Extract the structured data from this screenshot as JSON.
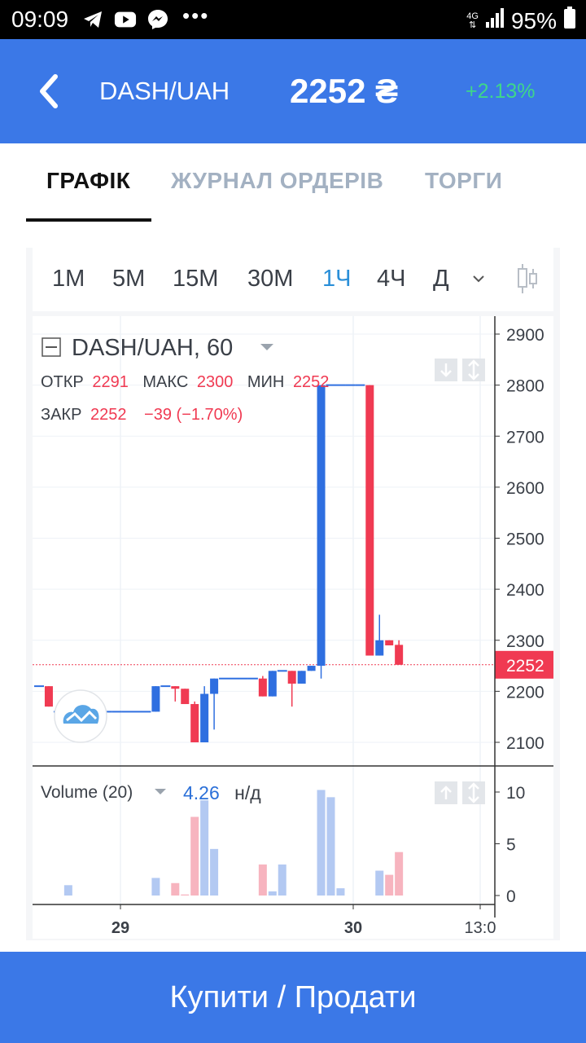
{
  "status_bar": {
    "time": "09:09",
    "network": "4G",
    "battery": "95%",
    "more": "•••",
    "icons": [
      "telegram-icon",
      "youtube-icon",
      "messenger-icon",
      "signal-icon",
      "battery-icon"
    ]
  },
  "header": {
    "pair": "DASH/UAH",
    "price": "2252 ₴",
    "change": "+2.13%",
    "colors": {
      "background": "#3b78e7",
      "change": "#3ed68b"
    }
  },
  "tabs": [
    {
      "label": "ГРАФІК",
      "active": true
    },
    {
      "label": "ЖУРНАЛ ОРДЕРІВ",
      "active": false
    },
    {
      "label": "ТОРГИ",
      "active": false
    }
  ],
  "timeframes": {
    "items": [
      "1M",
      "5M",
      "15M",
      "30M",
      "1Ч",
      "4Ч",
      "Д"
    ],
    "active": "1Ч"
  },
  "chart_data": {
    "type": "candlestick",
    "symbol_label": "DASH/UAH, 60",
    "ohlc": {
      "open_label": "ОТКР",
      "open": "2291",
      "high_label": "МАКС",
      "high": "2300",
      "low_label": "МИН",
      "low": "2252",
      "close_label": "ЗАКР",
      "close": "2252",
      "change": "−39 (−1.70%)"
    },
    "y_axis": {
      "range": [
        2050,
        2920
      ],
      "ticks": [
        "2900",
        "2800",
        "2700",
        "2600",
        "2500",
        "2400",
        "2300",
        "2200",
        "2100"
      ]
    },
    "last_price": 2252,
    "last_price_label": "2252",
    "x_ticks": [
      {
        "label": "29",
        "bold": true
      },
      {
        "label": "30",
        "bold": true
      },
      {
        "label": "13:0",
        "bold": false
      }
    ],
    "candles": [
      {
        "o": 2210,
        "h": 2210,
        "l": 2210,
        "c": 2210,
        "dir": "flat"
      },
      {
        "o": 2210,
        "h": 2210,
        "l": 2170,
        "c": 2170,
        "dir": "down"
      },
      {
        "o": 2160,
        "h": 2160,
        "l": 2160,
        "c": 2160,
        "dir": "flat"
      },
      {
        "o": 2160,
        "h": 2160,
        "l": 2160,
        "c": 2160,
        "dir": "flat"
      },
      {
        "o": 2160,
        "h": 2160,
        "l": 2160,
        "c": 2160,
        "dir": "flat"
      },
      {
        "o": 2160,
        "h": 2160,
        "l": 2160,
        "c": 2160,
        "dir": "flat"
      },
      {
        "o": 2160,
        "h": 2160,
        "l": 2160,
        "c": 2160,
        "dir": "flat"
      },
      {
        "o": 2160,
        "h": 2160,
        "l": 2160,
        "c": 2160,
        "dir": "flat"
      },
      {
        "o": 2160,
        "h": 2160,
        "l": 2160,
        "c": 2160,
        "dir": "flat"
      },
      {
        "o": 2160,
        "h": 2160,
        "l": 2160,
        "c": 2160,
        "dir": "flat"
      },
      {
        "o": 2160,
        "h": 2160,
        "l": 2160,
        "c": 2160,
        "dir": "flat"
      },
      {
        "o": 2160,
        "h": 2160,
        "l": 2160,
        "c": 2160,
        "dir": "flat"
      },
      {
        "o": 2160,
        "h": 2210,
        "l": 2160,
        "c": 2210,
        "dir": "up"
      },
      {
        "o": 2210,
        "h": 2210,
        "l": 2210,
        "c": 2210,
        "dir": "flat"
      },
      {
        "o": 2210,
        "h": 2210,
        "l": 2180,
        "c": 2205,
        "dir": "down"
      },
      {
        "o": 2205,
        "h": 2205,
        "l": 2175,
        "c": 2175,
        "dir": "down"
      },
      {
        "o": 2175,
        "h": 2180,
        "l": 2100,
        "c": 2100,
        "dir": "down"
      },
      {
        "o": 2100,
        "h": 2210,
        "l": 2100,
        "c": 2195,
        "dir": "up"
      },
      {
        "o": 2195,
        "h": 2225,
        "l": 2125,
        "c": 2225,
        "dir": "up"
      },
      {
        "o": 2225,
        "h": 2225,
        "l": 2225,
        "c": 2225,
        "dir": "flat"
      },
      {
        "o": 2225,
        "h": 2225,
        "l": 2225,
        "c": 2225,
        "dir": "flat"
      },
      {
        "o": 2225,
        "h": 2225,
        "l": 2225,
        "c": 2225,
        "dir": "flat"
      },
      {
        "o": 2225,
        "h": 2225,
        "l": 2225,
        "c": 2225,
        "dir": "flat"
      },
      {
        "o": 2225,
        "h": 2230,
        "l": 2190,
        "c": 2190,
        "dir": "down"
      },
      {
        "o": 2190,
        "h": 2240,
        "l": 2190,
        "c": 2240,
        "dir": "up"
      },
      {
        "o": 2240,
        "h": 2240,
        "l": 2240,
        "c": 2240,
        "dir": "flat"
      },
      {
        "o": 2240,
        "h": 2240,
        "l": 2170,
        "c": 2215,
        "dir": "down"
      },
      {
        "o": 2215,
        "h": 2240,
        "l": 2215,
        "c": 2240,
        "dir": "up"
      },
      {
        "o": 2240,
        "h": 2250,
        "l": 2240,
        "c": 2250,
        "dir": "up"
      },
      {
        "o": 2250,
        "h": 2800,
        "l": 2225,
        "c": 2800,
        "dir": "up"
      },
      {
        "o": 2800,
        "h": 2800,
        "l": 2800,
        "c": 2800,
        "dir": "flat"
      },
      {
        "o": 2800,
        "h": 2800,
        "l": 2800,
        "c": 2800,
        "dir": "flat"
      },
      {
        "o": 2800,
        "h": 2800,
        "l": 2800,
        "c": 2800,
        "dir": "flat"
      },
      {
        "o": 2800,
        "h": 2800,
        "l": 2800,
        "c": 2800,
        "dir": "flat"
      },
      {
        "o": 2800,
        "h": 2800,
        "l": 2270,
        "c": 2270,
        "dir": "down"
      },
      {
        "o": 2270,
        "h": 2350,
        "l": 2270,
        "c": 2300,
        "dir": "up"
      },
      {
        "o": 2300,
        "h": 2300,
        "l": 2290,
        "c": 2290,
        "dir": "down"
      },
      {
        "o": 2291,
        "h": 2300,
        "l": 2252,
        "c": 2252,
        "dir": "down"
      }
    ],
    "volume": {
      "label": "Volume (20)",
      "value": "4.26",
      "unit": "н/д",
      "range": [
        0,
        11
      ],
      "ticks": [
        "10",
        "5",
        "0"
      ],
      "bars": [
        0,
        0,
        0,
        1,
        0,
        0,
        0,
        0,
        0,
        0,
        0,
        0,
        1.7,
        0,
        1.2,
        0.1,
        7.6,
        9.2,
        4.5,
        0,
        0,
        0,
        0,
        3,
        0.4,
        3,
        0,
        0,
        0,
        10.2,
        9.5,
        0.7,
        0,
        0,
        0,
        2.4,
        2,
        4.2
      ]
    },
    "colors": {
      "up": "#2f6fe0",
      "down": "#f03a52",
      "grid": "#eef2f7",
      "volume_up": "#b3c9f2",
      "volume_down": "#f7b4bf"
    }
  },
  "buy_button": {
    "label": "Купити / Продати"
  }
}
